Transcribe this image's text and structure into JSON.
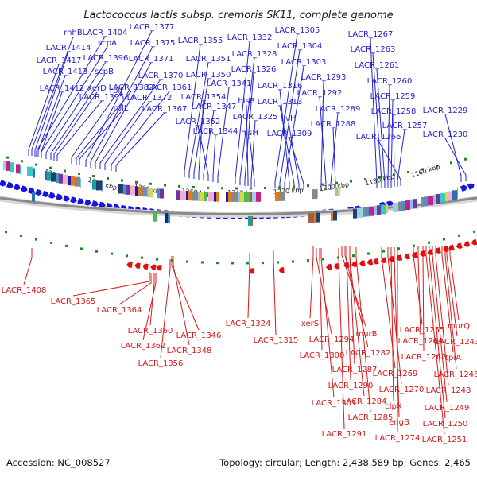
{
  "title": "Lactococcus lactis subsp. cremoris SK11, complete genome",
  "footer": {
    "accession": "Accession: NC_008527",
    "summary": "Topology: circular; Length: 2,438,589 bp; Genes: 2,465"
  },
  "colors": {
    "forward": "#1515e0",
    "reverse": "#e01010",
    "label_top": "#1f1fd0",
    "label_bottom": "#d01818",
    "backbone": "#9a9a9a",
    "tick": "#1a8a1a"
  },
  "scale_labels": [
    "1320 kbp",
    "1300 kbp",
    "1280 kbp",
    "1260 kbp",
    "1240 kbp",
    "1220 kbp",
    "1200 kbp",
    "1180 kbp",
    "1160 kbp"
  ],
  "top_labels": [
    "rnhB",
    "LACR_1404",
    "LACR_1414",
    "scpA",
    "LACR_1417",
    "LACR_1396",
    "LACR_1413",
    "scpB",
    "LACR_1412",
    "xerD",
    "LACR_1395",
    "rplJ",
    "LACR_1382",
    "rplL",
    "LACR_1377",
    "LACR_1375",
    "LACR_1371",
    "LACR_1370",
    "LACR_1372",
    "LACR_1361",
    "LACR_1367",
    "LACR_1355",
    "LACR_1351",
    "LACR_1350",
    "LACR_1354",
    "LACR_1347",
    "LACR_1352",
    "LACR_1344",
    "LACR_1341",
    "LACR_1332",
    "LACR_1328",
    "LACR_1326",
    "hisB",
    "LACR_1325",
    "hisH",
    "LACR_1305",
    "LACR_1304",
    "LACR_1303",
    "LACR_1316",
    "LACR_1313",
    "ilvH",
    "LACR_1309",
    "LACR_1293",
    "LACR_1292",
    "LACR_1289",
    "LACR_1288",
    "LACR_1267",
    "LACR_1263",
    "LACR_1261",
    "LACR_1260",
    "LACR_1259",
    "LACR_1258",
    "LACR_1257",
    "LACR_1266",
    "LACR_1229",
    "LACR_1230"
  ],
  "bottom_labels": [
    "LACR_1408",
    "LACR_1365",
    "LACR_1364",
    "LACR_1360",
    "LACR_1362",
    "LACR_1346",
    "LACR_1348",
    "LACR_1356",
    "LACR_1324",
    "LACR_1315",
    "xerS",
    "LACR_1294",
    "LACR_1300",
    "murB",
    "LACR_1282",
    "LACR_1287",
    "LACR_1290",
    "LACR_1301",
    "LACR_1284",
    "LACR_1285",
    "LACR_1291",
    "LACR_1269",
    "LACR_1270",
    "clpX",
    "engB",
    "LACR_1274",
    "LACR_1255",
    "LACR_1264",
    "murQ",
    "LACR_1243",
    "LACR_1262",
    "tpiA",
    "LACR_1246",
    "LACR_1248",
    "LACR_1249",
    "LACR_1250",
    "LACR_1251"
  ]
}
